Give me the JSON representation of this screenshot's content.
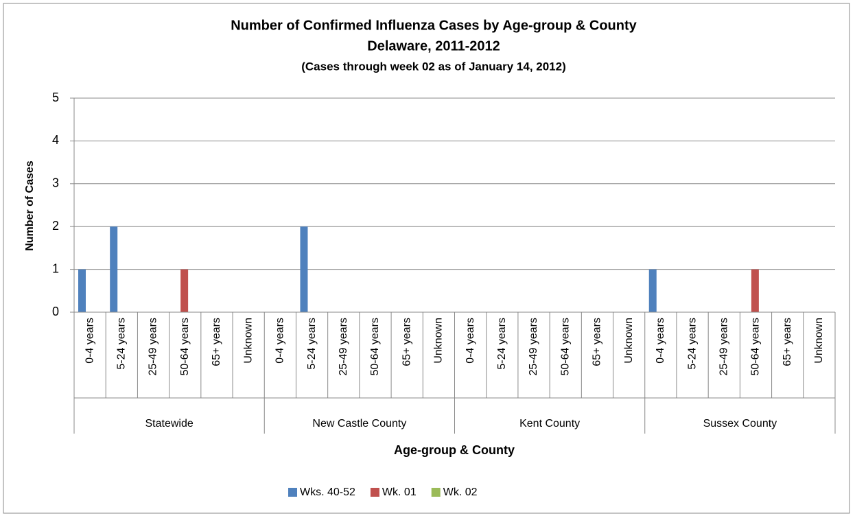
{
  "chart_data": {
    "type": "bar",
    "title": "Number of Confirmed Influenza Cases by Age-group & County",
    "subtitle": "Delaware, 2011-2012",
    "note": "(Cases through week 02 as of January 14, 2012)",
    "x_label": "Age-group & County",
    "y_label": "Number of Cases",
    "groups": [
      "Statewide",
      "New Castle  County",
      "Kent County",
      "Sussex County"
    ],
    "categories": [
      "0-4 years",
      "5-24 years",
      "25-49 years",
      "50-64 years",
      "65+ years",
      "Unknown",
      "0-4 years",
      "5-24 years",
      "25-49 years",
      "50-64 years",
      "65+ years",
      "Unknown",
      "0-4 years",
      "5-24 years",
      "25-49 years",
      "50-64 years",
      "65+ years",
      "Unknown",
      "0-4 years",
      "5-24 years",
      "25-49 years",
      "50-64 years",
      "65+ years",
      "Unknown"
    ],
    "series": [
      {
        "name": "Wks. 40-52",
        "color": "#4f81bd",
        "values": [
          1,
          2,
          0,
          0,
          0,
          0,
          0,
          2,
          0,
          0,
          0,
          0,
          0,
          0,
          0,
          0,
          0,
          0,
          1,
          0,
          0,
          0,
          0,
          0
        ]
      },
      {
        "name": "Wk. 01",
        "color": "#c0504d",
        "values": [
          0,
          0,
          0,
          1,
          0,
          0,
          0,
          0,
          0,
          0,
          0,
          0,
          0,
          0,
          0,
          0,
          0,
          0,
          0,
          0,
          0,
          1,
          0,
          0
        ]
      },
      {
        "name": "Wk. 02",
        "color": "#9bbb59",
        "values": [
          0,
          0,
          0,
          0,
          0,
          0,
          0,
          0,
          0,
          0,
          0,
          0,
          0,
          0,
          0,
          0,
          0,
          0,
          0,
          0,
          0,
          0,
          0,
          0
        ]
      }
    ],
    "ylim": [
      0,
      5
    ],
    "yticks": [
      0,
      1,
      2,
      3,
      4,
      5
    ],
    "grid": true,
    "legend": "bottom"
  }
}
